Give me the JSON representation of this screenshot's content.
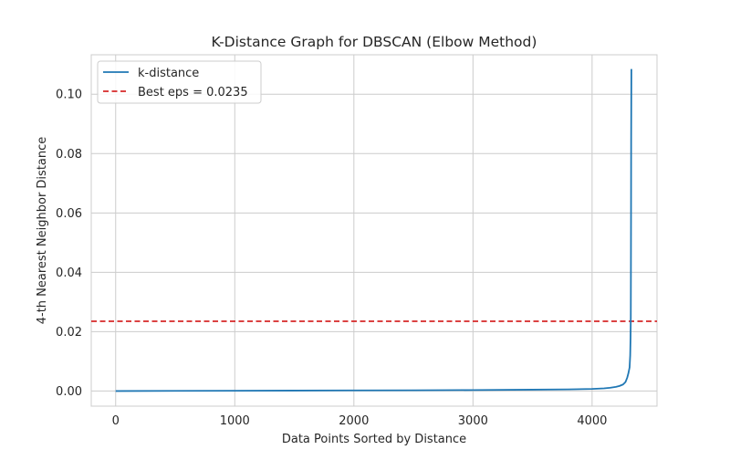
{
  "chart_data": {
    "type": "line",
    "title": "K-Distance Graph for DBSCAN (Elbow Method)",
    "xlabel": "Data Points Sorted by Distance",
    "ylabel": "4-th Nearest Neighbor Distance",
    "xlim": [
      -205,
      4545
    ],
    "ylim": [
      -0.0051,
      0.1133
    ],
    "xticks": [
      0,
      1000,
      2000,
      3000,
      4000
    ],
    "xtick_labels": [
      "0",
      "1000",
      "2000",
      "3000",
      "4000"
    ],
    "yticks": [
      0.0,
      0.02,
      0.04,
      0.06,
      0.08,
      0.1
    ],
    "ytick_labels": [
      "0.00",
      "0.02",
      "0.04",
      "0.06",
      "0.08",
      "0.10"
    ],
    "grid": true,
    "legend_position": "upper left",
    "series": [
      {
        "name": "k-distance",
        "color": "#1f77b4",
        "style": "solid",
        "x": [
          0,
          500,
          1000,
          1500,
          2000,
          2500,
          3000,
          3500,
          3800,
          4000,
          4100,
          4150,
          4200,
          4230,
          4260,
          4280,
          4295,
          4305,
          4315,
          4320,
          4323,
          4325,
          4326,
          4327,
          4328,
          4330
        ],
        "y": [
          0.0,
          5e-05,
          0.0001,
          0.00015,
          0.0002,
          0.00025,
          0.00032,
          0.00045,
          0.00055,
          0.0007,
          0.0009,
          0.0011,
          0.0014,
          0.0017,
          0.0022,
          0.003,
          0.0045,
          0.006,
          0.008,
          0.012,
          0.018,
          0.025,
          0.04,
          0.06,
          0.085,
          0.1085
        ]
      }
    ],
    "hlines": [
      {
        "name": "Best eps = 0.0235",
        "y": 0.0235,
        "color": "#d62728",
        "style": "dashed"
      }
    ]
  }
}
